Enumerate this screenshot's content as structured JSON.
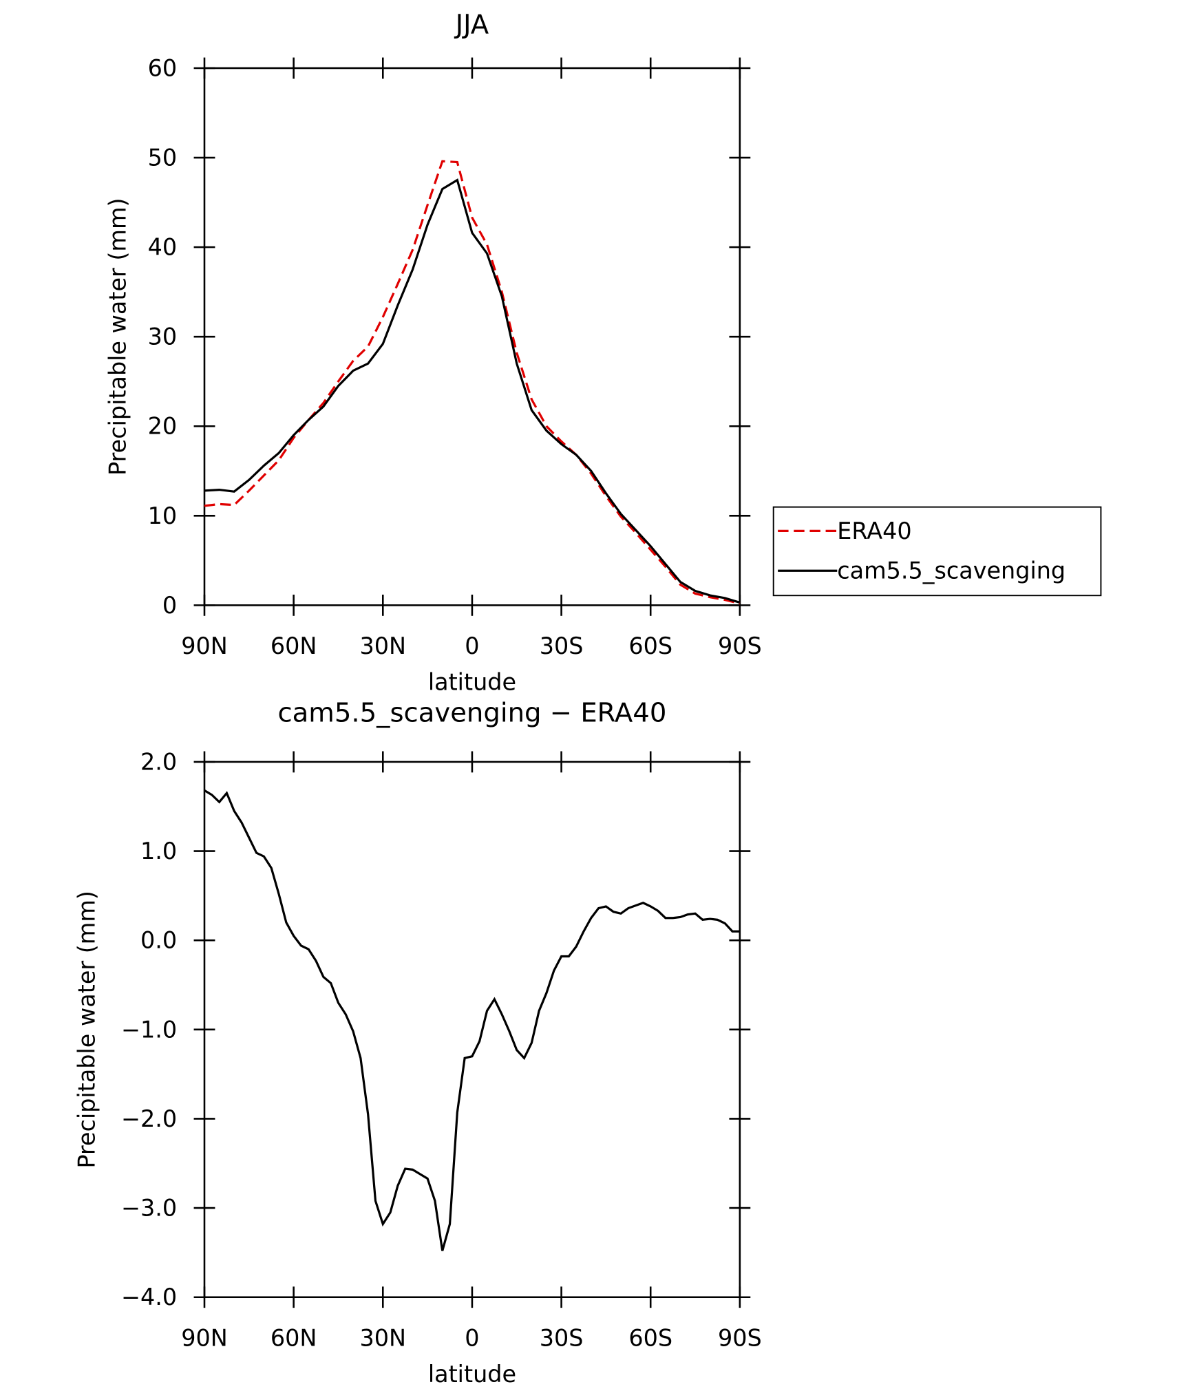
{
  "chart_data": [
    {
      "type": "line",
      "title": "JJA",
      "xlabel": "latitude",
      "ylabel": "Precipitable water (mm)",
      "x": [
        90,
        85,
        80,
        75,
        70,
        65,
        60,
        55,
        50,
        45,
        40,
        35,
        30,
        25,
        20,
        15,
        10,
        5,
        0,
        -5,
        -10,
        -15,
        -20,
        -25,
        -30,
        -35,
        -40,
        -45,
        -50,
        -55,
        -60,
        -65,
        -70,
        -75,
        -80,
        -85,
        -90
      ],
      "series": [
        {
          "name": "ERA40",
          "color": "#e00000",
          "style": "dashed",
          "values": [
            11.1,
            11.3,
            11.2,
            12.8,
            14.5,
            16.2,
            18.7,
            20.7,
            22.6,
            25.0,
            27.3,
            28.9,
            32.2,
            35.9,
            39.7,
            44.7,
            49.6,
            49.5,
            43.3,
            40.3,
            35.0,
            28.2,
            23.0,
            20.0,
            18.3,
            16.8,
            14.7,
            12.2,
            9.9,
            8.1,
            6.2,
            4.3,
            2.3,
            1.3,
            0.9,
            0.6,
            0.2
          ]
        },
        {
          "name": "cam5.5_scavenging",
          "color": "#000000",
          "style": "solid",
          "values": [
            12.8,
            12.9,
            12.7,
            14.0,
            15.6,
            17.0,
            19.0,
            20.7,
            22.2,
            24.5,
            26.2,
            27.0,
            29.2,
            33.5,
            37.5,
            42.5,
            46.5,
            47.5,
            41.6,
            39.3,
            34.5,
            27.0,
            21.8,
            19.5,
            18.0,
            16.8,
            15.0,
            12.5,
            10.2,
            8.4,
            6.6,
            4.6,
            2.6,
            1.6,
            1.1,
            0.8,
            0.3
          ]
        }
      ],
      "xlim": [
        90,
        -90
      ],
      "xticks": [
        {
          "value": 90,
          "label": "90N"
        },
        {
          "value": 60,
          "label": "60N"
        },
        {
          "value": 30,
          "label": "30N"
        },
        0,
        {
          "value": -30,
          "label": "30S"
        },
        {
          "value": -60,
          "label": "60S"
        },
        {
          "value": -90,
          "label": "90S"
        }
      ],
      "ylim": [
        0,
        60
      ],
      "yticks": [
        0,
        10,
        20,
        30,
        40,
        50,
        60
      ],
      "legend": "right"
    },
    {
      "type": "line",
      "title": "cam5.5_scavenging − ERA40",
      "xlabel": "latitude",
      "ylabel": "Precipitable water (mm)",
      "x": [
        90,
        87.5,
        85,
        82.5,
        80,
        77.5,
        75,
        72.5,
        70,
        67.5,
        65,
        62.5,
        60,
        57.5,
        55,
        52.5,
        50,
        47.5,
        45,
        42.5,
        40,
        37.5,
        35,
        32.5,
        30,
        27.5,
        25,
        22.5,
        20,
        17.5,
        15,
        12.5,
        10,
        7.5,
        5,
        2.5,
        0,
        -2.5,
        -5,
        -7.5,
        -10,
        -12.5,
        -15,
        -17.5,
        -20,
        -22.5,
        -25,
        -27.5,
        -30,
        -32.5,
        -35,
        -37.5,
        -40,
        -42.5,
        -45,
        -47.5,
        -50,
        -52.5,
        -55,
        -57.5,
        -60,
        -62.5,
        -65,
        -67.5,
        -70,
        -72.5,
        -75,
        -77.5,
        -80,
        -82.5,
        -85,
        -87.5,
        -90
      ],
      "series": [
        {
          "color": "#000000",
          "style": "solid",
          "values": [
            1.68,
            1.63,
            1.55,
            1.65,
            1.45,
            1.32,
            1.15,
            0.98,
            0.94,
            0.81,
            0.52,
            0.2,
            0.05,
            -0.06,
            -0.1,
            -0.23,
            -0.41,
            -0.48,
            -0.7,
            -0.83,
            -1.02,
            -1.32,
            -1.95,
            -2.92,
            -3.18,
            -3.05,
            -2.75,
            -2.56,
            -2.57,
            -2.62,
            -2.67,
            -2.92,
            -3.48,
            -3.18,
            -1.93,
            -1.32,
            -1.3,
            -1.13,
            -0.79,
            -0.66,
            -0.83,
            -1.02,
            -1.23,
            -1.32,
            -1.15,
            -0.79,
            -0.59,
            -0.34,
            -0.18,
            -0.18,
            -0.07,
            0.1,
            0.25,
            0.36,
            0.38,
            0.32,
            0.3,
            0.36,
            0.39,
            0.42,
            0.38,
            0.33,
            0.25,
            0.25,
            0.26,
            0.29,
            0.3,
            0.23,
            0.24,
            0.23,
            0.19,
            0.1,
            0.1
          ]
        }
      ],
      "xlim": [
        90,
        -90
      ],
      "xticks": [
        {
          "value": 90,
          "label": "90N"
        },
        {
          "value": 60,
          "label": "60N"
        },
        {
          "value": 30,
          "label": "30N"
        },
        0,
        {
          "value": -30,
          "label": "30S"
        },
        {
          "value": -60,
          "label": "60S"
        },
        {
          "value": -90,
          "label": "90S"
        }
      ],
      "ylim": [
        -4,
        2
      ],
      "yticks": [
        {
          "value": -4,
          "label": "−4.0"
        },
        {
          "value": -3,
          "label": "−3.0"
        },
        {
          "value": -2,
          "label": "−2.0"
        },
        {
          "value": -1,
          "label": "−1.0"
        },
        {
          "value": 0,
          "label": "0.0"
        },
        {
          "value": 1,
          "label": "1.0"
        },
        {
          "value": 2,
          "label": "2.0"
        }
      ]
    }
  ]
}
